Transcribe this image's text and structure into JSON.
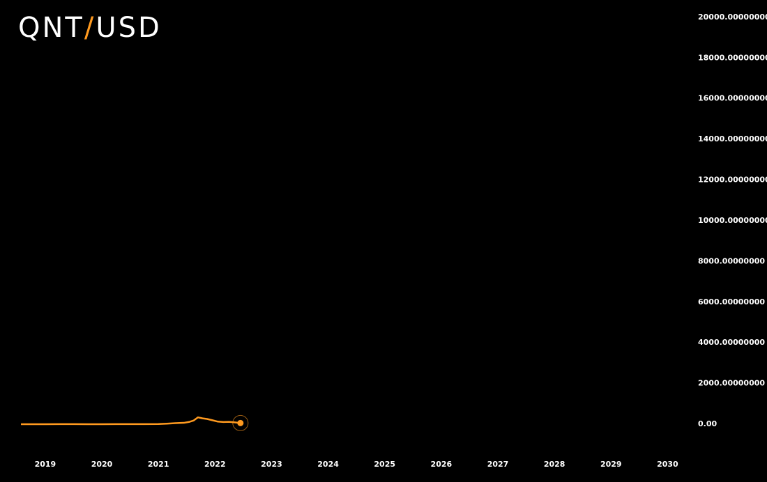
{
  "chart_data": {
    "type": "line",
    "title": "QNT/USD",
    "x": [
      2018.57,
      2018.8,
      2019.0,
      2019.25,
      2019.5,
      2019.75,
      2020.0,
      2020.25,
      2020.5,
      2020.75,
      2021.0,
      2021.15,
      2021.3,
      2021.45,
      2021.55,
      2021.62,
      2021.7,
      2021.78,
      2021.86,
      2021.95,
      2022.05,
      2022.15,
      2022.25,
      2022.35,
      2022.45
    ],
    "series": [
      {
        "name": "QNT",
        "color": "#ff9a1f",
        "values": [
          5,
          3,
          4,
          6,
          8,
          5,
          4,
          6,
          9,
          8,
          12,
          30,
          55,
          70,
          120,
          180,
          340,
          290,
          260,
          200,
          130,
          110,
          120,
          95,
          60
        ]
      }
    ],
    "xlim": [
      2018.2,
      2030.34
    ],
    "xticks": [
      2019,
      2020,
      2021,
      2022,
      2023,
      2024,
      2025,
      2026,
      2027,
      2028,
      2029,
      2030
    ],
    "ylim": [
      -1400,
      20850
    ],
    "yticks": [
      {
        "value": 0,
        "label": "0.00"
      },
      {
        "value": 2000,
        "label": "2000.00000000"
      },
      {
        "value": 4000,
        "label": "4000.00000000"
      },
      {
        "value": 6000,
        "label": "6000.00000000"
      },
      {
        "value": 8000,
        "label": "8000.00000000"
      },
      {
        "value": 10000,
        "label": "10000.00000000"
      },
      {
        "value": 12000,
        "label": "12000.00000000"
      },
      {
        "value": 14000,
        "label": "14000.00000000"
      },
      {
        "value": 16000,
        "label": "16000.00000000"
      },
      {
        "value": 18000,
        "label": "18000.00000000"
      },
      {
        "value": 20000,
        "label": "20000.00000000"
      }
    ]
  }
}
